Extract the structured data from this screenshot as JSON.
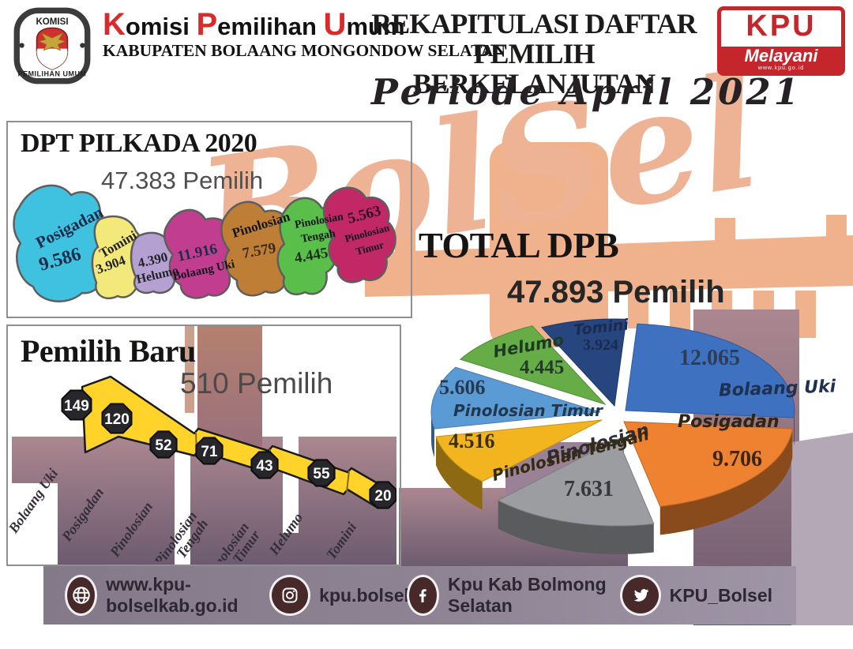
{
  "header": {
    "logo": {
      "top_text": "KOMISI",
      "bottom_text": "PEMILIHAN UMUM"
    },
    "org": {
      "cap1": "K",
      "rest1": "omisi ",
      "cap2": "P",
      "rest2": "emilihan ",
      "cap3": "U",
      "rest3": "mum",
      "line2": "KABUPATEN BOLAANG MONGONDOW SELATAN"
    },
    "title_line1": "REKAPITULASI DAFTAR",
    "title_line2": "PEMILIH BERKELANJUTAN",
    "period": "Periode April 2021",
    "kpu_melayani": {
      "line1": "KPU",
      "line2": "Melayani",
      "url": "www.kpu.go.id"
    }
  },
  "watermark": "BolSel",
  "dpt": {
    "title": "DPT PILKADA 2020",
    "total": "47.383 Pemilih",
    "regions": [
      {
        "name_lines": [
          "Posigadan"
        ],
        "value": "9.586",
        "color": "#3fc1e0"
      },
      {
        "name_lines": [
          "Tomini"
        ],
        "value": "3.904",
        "color": "#f3e97b"
      },
      {
        "name_lines": [
          "Helumo"
        ],
        "value": "4.390",
        "color": "#b5a1d1"
      },
      {
        "name_lines": [
          "Bolaang Uki"
        ],
        "value": "11.916",
        "color": "#c03d90"
      },
      {
        "name_lines": [
          "Pinolosian"
        ],
        "value": "7.579",
        "color": "#bf7e35"
      },
      {
        "name_lines": [
          "Pinolosian",
          "Tengah"
        ],
        "value": "4.445",
        "color": "#5abf4a"
      },
      {
        "name_lines": [
          "Pinolosian",
          "Timur"
        ],
        "value": "5.563",
        "color": "#c22766"
      }
    ]
  },
  "baru": {
    "title": "Pemilih Baru",
    "total": "510 Pemilih",
    "items": [
      {
        "name_lines": [
          "Bolaang Uki"
        ],
        "value": "149"
      },
      {
        "name_lines": [
          "Posigadan"
        ],
        "value": "120"
      },
      {
        "name_lines": [
          "Pinolosian"
        ],
        "value": "52"
      },
      {
        "name_lines": [
          "Pinolosian",
          "Tengah"
        ],
        "value": "71"
      },
      {
        "name_lines": [
          "Pinolosian",
          "Timur"
        ],
        "value": "43"
      },
      {
        "name_lines": [
          "Helumo"
        ],
        "value": "55"
      },
      {
        "name_lines": [
          "Tomini"
        ],
        "value": "20"
      }
    ]
  },
  "dpb": {
    "title": "TOTAL DPB",
    "total": "47.893 Pemilih"
  },
  "chart_data": [
    {
      "type": "heatmap",
      "note": "choropleth-style district map",
      "title": "DPT PILKADA 2020",
      "subtitle": "47.383 Pemilih",
      "categories": [
        "Posigadan",
        "Tomini",
        "Helumo",
        "Bolaang Uki",
        "Pinolosian",
        "Pinolosian Tengah",
        "Pinolosian Timur"
      ],
      "values": [
        9586,
        3904,
        4390,
        11916,
        7579,
        4445,
        5563
      ],
      "colors": [
        "#3fc1e0",
        "#f3e97b",
        "#b5a1d1",
        "#c03d90",
        "#bf7e35",
        "#5abf4a",
        "#c22766"
      ]
    },
    {
      "type": "bar",
      "note": "descending ribbon banner with value badges",
      "title": "Pemilih Baru",
      "subtitle": "510 Pemilih",
      "categories": [
        "Bolaang Uki",
        "Posigadan",
        "Pinolosian",
        "Pinolosian Tengah",
        "Pinolosian Timur",
        "Helumo",
        "Tomini"
      ],
      "values": [
        149,
        120,
        52,
        71,
        43,
        55,
        20
      ]
    },
    {
      "type": "pie",
      "title": "TOTAL DPB",
      "subtitle": "47.893 Pemilih",
      "categories": [
        "Bolaang Uki",
        "Posigadan",
        "Pinolosian",
        "Pinolosian Tengah",
        "Pinolosian Timur",
        "Helumo",
        "Tomini"
      ],
      "values": [
        12065,
        9706,
        7631,
        4516,
        5606,
        4445,
        3924
      ],
      "display_values": [
        "12.065",
        "9.706",
        "7.631",
        "4.516",
        "5.606",
        "4.445",
        "3.924"
      ],
      "colors": [
        "#3e72c0",
        "#ee8230",
        "#9b9da0",
        "#f2b51f",
        "#5b9bd5",
        "#67ad47",
        "#27457e"
      ],
      "style": "3d-exploded",
      "legend": "labels-on-slices"
    }
  ],
  "footer": {
    "website": "www.kpu-bolselkab.go.id",
    "instagram": "kpu.bolsel",
    "facebook": "Kpu Kab Bolmong Selatan",
    "twitter": "KPU_Bolsel"
  }
}
